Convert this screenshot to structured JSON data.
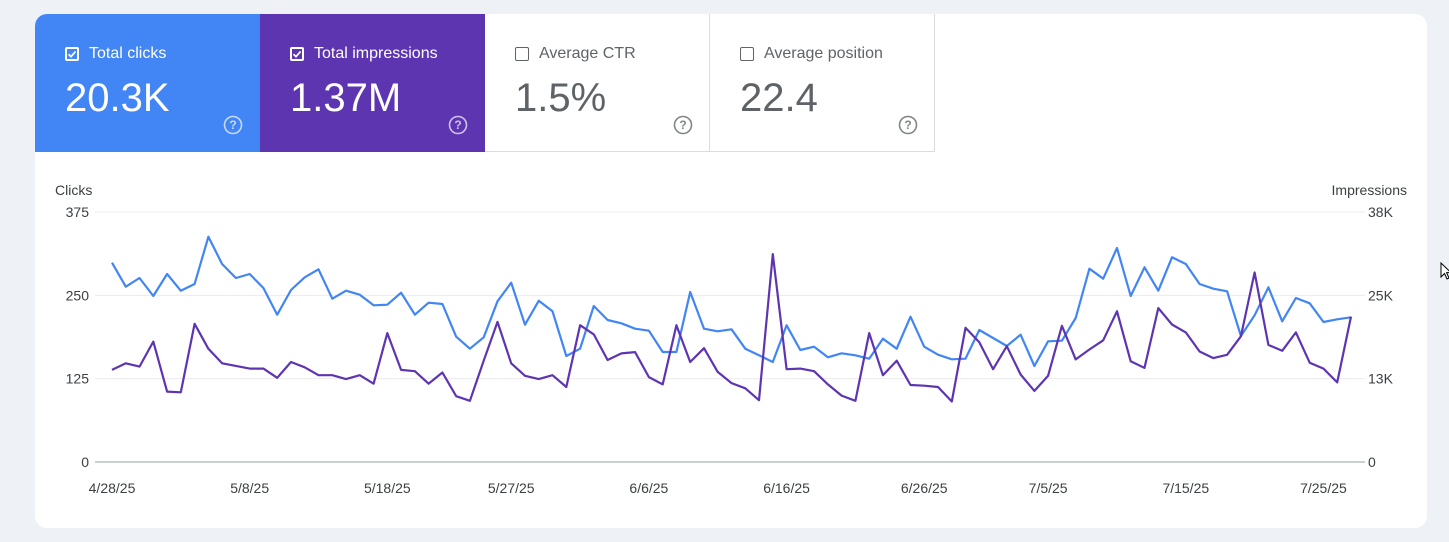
{
  "metrics": [
    {
      "label": "Total clicks",
      "value": "20.3K",
      "checked": true,
      "color": "#4285f4"
    },
    {
      "label": "Total impressions",
      "value": "1.37M",
      "checked": true,
      "color": "#5e35b1"
    },
    {
      "label": "Average CTR",
      "value": "1.5%",
      "checked": false,
      "color": "#ffffff"
    },
    {
      "label": "Average position",
      "value": "22.4",
      "checked": false,
      "color": "#ffffff"
    }
  ],
  "chart_data": {
    "type": "line",
    "ylabel_left": "Clicks",
    "ylabel_right": "Impressions",
    "ylim_left": [
      0,
      375
    ],
    "ylim_right": [
      0,
      38000
    ],
    "yticks_left": [
      "0",
      "125",
      "250",
      "375"
    ],
    "yticks_right": [
      "0",
      "13K",
      "25K",
      "38K"
    ],
    "xticks": [
      "4/28/25",
      "5/8/25",
      "5/18/25",
      "5/27/25",
      "6/6/25",
      "6/16/25",
      "6/26/25",
      "7/5/25",
      "7/15/25",
      "7/25/25"
    ],
    "xtick_index": [
      0,
      10,
      20,
      29,
      39,
      49,
      59,
      68,
      78,
      88
    ],
    "x_start": "4/28/25",
    "x_end": "7/26/25",
    "grid": true,
    "series": [
      {
        "name": "Clicks",
        "axis": "left",
        "color": "#4285f4",
        "values": [
          299,
          263,
          276,
          249,
          282,
          257,
          267,
          338,
          297,
          276,
          282,
          261,
          221,
          258,
          277,
          289,
          245,
          257,
          251,
          235,
          236,
          254,
          221,
          239,
          237,
          188,
          170,
          187,
          241,
          269,
          206,
          242,
          226,
          159,
          170,
          234,
          213,
          208,
          200,
          197,
          165,
          165,
          255,
          200,
          196,
          199,
          170,
          160,
          150,
          205,
          168,
          173,
          157,
          163,
          160,
          155,
          185,
          170,
          218,
          173,
          161,
          154,
          155,
          198,
          186,
          174,
          191,
          144,
          181,
          182,
          216,
          290,
          275,
          321,
          249,
          292,
          257,
          307,
          297,
          267,
          260,
          256,
          189,
          220,
          262,
          211,
          246,
          238,
          210,
          214,
          217
        ]
      },
      {
        "name": "Impressions",
        "axis": "right",
        "color": "#5e35b1",
        "values": [
          14000,
          15000,
          14500,
          18300,
          10700,
          10600,
          21000,
          17200,
          15000,
          14600,
          14200,
          14200,
          12800,
          15200,
          14400,
          13200,
          13200,
          12600,
          13200,
          11900,
          19600,
          14000,
          13800,
          11900,
          13600,
          10000,
          9300,
          15400,
          21300,
          15000,
          13100,
          12600,
          13200,
          11400,
          20800,
          19400,
          15500,
          16500,
          16700,
          12900,
          11800,
          20800,
          15200,
          17300,
          13700,
          12000,
          11200,
          9400,
          31600,
          14100,
          14200,
          13800,
          11800,
          10100,
          9300,
          19600,
          13200,
          15400,
          11700,
          11600,
          11400,
          9200,
          20400,
          18200,
          14100,
          17600,
          13300,
          10800,
          13100,
          20700,
          15600,
          17100,
          18500,
          22900,
          15300,
          14300,
          23400,
          20900,
          19700,
          16800,
          15800,
          16300,
          19100,
          28800,
          17800,
          16900,
          19700,
          15100,
          14200,
          12100,
          22100
        ]
      }
    ]
  }
}
